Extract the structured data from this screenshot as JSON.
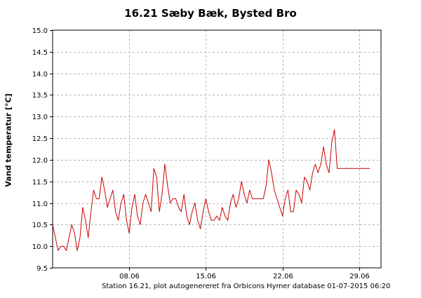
{
  "chart_data": {
    "type": "line",
    "title": "16.21 Sæby Bæk, Bysted Bro",
    "xlabel": "",
    "ylabel": "Vand temperatur [°C]",
    "ylim": [
      9.5,
      15.0
    ],
    "yticks": [
      9.5,
      10.0,
      10.5,
      11.0,
      11.5,
      12.0,
      12.5,
      13.0,
      13.5,
      14.0,
      14.5,
      15.0
    ],
    "ytick_labels": [
      "9.5",
      "10.0",
      "10.5",
      "11.0",
      "11.5",
      "12.0",
      "12.5",
      "13.0",
      "13.5",
      "14.0",
      "14.5",
      "15.0"
    ],
    "xlim_days": [
      1.0,
      31.0
    ],
    "xticks": [
      {
        "label": "08.06",
        "day": 8
      },
      {
        "label": "15.06",
        "day": 15
      },
      {
        "label": "22.06",
        "day": 22
      },
      {
        "label": "29.06",
        "day": 29
      }
    ],
    "grid": true,
    "line_color": "#cc0000",
    "footer": "Station 16.21, plot autogenereret fra Orbicons Hymer database 01-07-2015 06:20",
    "series": [
      {
        "x": [
          1.0,
          1.25,
          1.5,
          1.75,
          2.0,
          2.25,
          2.5,
          2.75,
          3.0,
          3.25,
          3.5,
          3.75,
          4.0,
          4.25,
          4.5,
          4.75,
          5.0,
          5.25,
          5.5,
          5.75,
          6.0,
          6.25,
          6.5,
          6.75,
          7.0,
          7.25,
          7.5,
          7.75,
          8.0,
          8.25,
          8.5,
          8.75,
          9.0,
          9.25,
          9.5,
          9.75,
          10.0,
          10.25,
          10.5,
          10.75,
          11.0,
          11.25,
          11.5,
          11.75,
          12.0,
          12.25,
          12.5,
          12.75,
          13.0,
          13.25,
          13.5,
          13.75,
          14.0,
          14.25,
          14.5,
          14.75,
          15.0,
          15.25,
          15.5,
          15.75,
          16.0,
          16.25,
          16.5,
          16.75,
          17.0,
          17.25,
          17.5,
          17.75,
          18.0,
          18.25,
          18.5,
          18.75,
          19.0,
          19.25,
          19.5,
          19.75,
          20.0,
          20.25,
          20.5,
          20.75,
          21.0,
          21.25,
          21.5,
          21.75,
          22.0,
          22.25,
          22.5,
          22.75,
          23.0,
          23.25,
          23.5,
          23.75,
          24.0,
          24.25,
          24.5,
          24.75,
          25.0,
          25.25,
          25.5,
          25.75,
          26.0,
          26.25,
          26.5,
          26.75,
          27.0,
          27.25,
          27.5,
          27.75,
          28.0,
          28.25,
          28.5,
          28.75,
          29.0,
          29.25,
          29.5,
          29.75,
          30.0,
          30.25,
          30.5,
          30.75,
          31.0
        ],
        "y": [
          10.5,
          10.2,
          9.9,
          10.0,
          10.0,
          9.9,
          10.2,
          10.5,
          10.3,
          9.9,
          10.2,
          10.9,
          10.6,
          10.2,
          10.8,
          11.3,
          11.1,
          11.1,
          11.6,
          11.3,
          10.9,
          11.1,
          11.3,
          10.8,
          10.6,
          11.0,
          11.2,
          10.6,
          10.3,
          10.9,
          11.2,
          10.7,
          10.5,
          11.0,
          11.2,
          11.0,
          10.8,
          11.8,
          11.6,
          10.8,
          11.2,
          11.9,
          11.4,
          11.0,
          11.1,
          11.1,
          10.9,
          10.8,
          11.2,
          10.7,
          10.5,
          10.8,
          11.0,
          10.6,
          10.4,
          10.8,
          11.1,
          10.8,
          10.6,
          10.6,
          10.7,
          10.6,
          10.9,
          10.7,
          10.6,
          11.0,
          11.2,
          10.9,
          11.1,
          11.5,
          11.2,
          11.0,
          11.3,
          11.1,
          11.1,
          11.1,
          11.1,
          11.1,
          11.4,
          12.0,
          11.7,
          11.3,
          11.1,
          10.9,
          10.7,
          11.1,
          11.3,
          10.8,
          10.8,
          11.3,
          11.2,
          11.0,
          11.6,
          11.5,
          11.3,
          11.7,
          11.9,
          11.7,
          11.9,
          12.3,
          11.9,
          11.7,
          12.4,
          12.7,
          11.8,
          11.8,
          11.8,
          11.8,
          11.8,
          11.8,
          11.8,
          11.8,
          11.8,
          11.8,
          11.8,
          11.8,
          11.8,
          11.8,
          11.8,
          11.8,
          11.8
        ],
        "x_visible_end": 30.0
      }
    ]
  }
}
